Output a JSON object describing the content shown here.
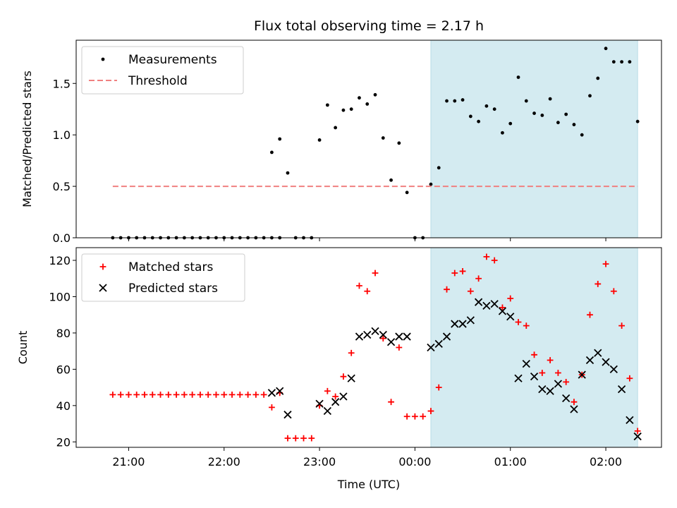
{
  "chart_data": [
    {
      "type": "scatter",
      "title": "Flux total observing time = 2.17 h",
      "xlabel": "",
      "ylabel": "Matched/Predicted stars",
      "ylim": [
        0,
        1.92
      ],
      "yticks": [
        "0.0",
        "0.5",
        "1.0",
        "1.5"
      ],
      "ytick_values": [
        0,
        0.5,
        1.0,
        1.5
      ],
      "grid": false,
      "legend": "top-left",
      "shaded_interval": [
        "00:10",
        "02:20"
      ],
      "shade_color": "#d4ebf1",
      "series": [
        {
          "name": "Measurements",
          "marker": "dot",
          "color": "#000000",
          "points": [
            [
              "20:50",
              0
            ],
            [
              "20:55",
              0
            ],
            [
              "21:00",
              0
            ],
            [
              "21:05",
              0
            ],
            [
              "21:10",
              0
            ],
            [
              "21:15",
              0
            ],
            [
              "21:20",
              0
            ],
            [
              "21:25",
              0
            ],
            [
              "21:30",
              0
            ],
            [
              "21:35",
              0
            ],
            [
              "21:40",
              0
            ],
            [
              "21:45",
              0
            ],
            [
              "21:50",
              0
            ],
            [
              "21:55",
              0
            ],
            [
              "22:00",
              0
            ],
            [
              "22:05",
              0
            ],
            [
              "22:10",
              0
            ],
            [
              "22:15",
              0
            ],
            [
              "22:20",
              0
            ],
            [
              "22:25",
              0
            ],
            [
              "22:30",
              0
            ],
            [
              "22:35",
              0
            ],
            [
              "22:30",
              0.83
            ],
            [
              "22:35",
              0.96
            ],
            [
              "22:40",
              0.63
            ],
            [
              "22:45",
              0
            ],
            [
              "22:50",
              0
            ],
            [
              "22:55",
              0
            ],
            [
              "23:00",
              0.95
            ],
            [
              "23:05",
              1.29
            ],
            [
              "23:10",
              1.07
            ],
            [
              "23:15",
              1.24
            ],
            [
              "23:20",
              1.25
            ],
            [
              "23:25",
              1.36
            ],
            [
              "23:30",
              1.3
            ],
            [
              "23:35",
              1.39
            ],
            [
              "23:40",
              0.97
            ],
            [
              "23:45",
              0.56
            ],
            [
              "23:50",
              0.92
            ],
            [
              "23:55",
              0.44
            ],
            [
              "00:00",
              0
            ],
            [
              "00:05",
              0
            ],
            [
              "00:10",
              0.52
            ],
            [
              "00:15",
              0.68
            ],
            [
              "00:20",
              1.33
            ],
            [
              "00:25",
              1.33
            ],
            [
              "00:30",
              1.34
            ],
            [
              "00:35",
              1.18
            ],
            [
              "00:40",
              1.13
            ],
            [
              "00:45",
              1.28
            ],
            [
              "00:50",
              1.25
            ],
            [
              "00:55",
              1.02
            ],
            [
              "01:00",
              1.11
            ],
            [
              "01:05",
              1.56
            ],
            [
              "01:10",
              1.33
            ],
            [
              "01:15",
              1.21
            ],
            [
              "01:20",
              1.19
            ],
            [
              "01:25",
              1.35
            ],
            [
              "01:30",
              1.12
            ],
            [
              "01:35",
              1.2
            ],
            [
              "01:40",
              1.1
            ],
            [
              "01:45",
              1.0
            ],
            [
              "01:50",
              1.38
            ],
            [
              "01:55",
              1.55
            ],
            [
              "02:00",
              1.84
            ],
            [
              "02:05",
              1.71
            ],
            [
              "02:10",
              1.71
            ],
            [
              "02:15",
              1.71
            ],
            [
              "02:20",
              1.13
            ]
          ]
        },
        {
          "name": "Threshold",
          "marker": "dashed-line",
          "color": "#f08080",
          "points": [
            [
              "20:50",
              0.5
            ],
            [
              "02:20",
              0.5
            ]
          ]
        }
      ]
    },
    {
      "type": "scatter",
      "title": "",
      "xlabel": "Time (UTC)",
      "ylabel": "Count",
      "ylim": [
        17,
        127
      ],
      "yticks": [
        "20",
        "40",
        "60",
        "80",
        "100",
        "120"
      ],
      "ytick_values": [
        20,
        40,
        60,
        80,
        100,
        120
      ],
      "xticks": [
        "21:00",
        "22:00",
        "23:00",
        "00:00",
        "01:00",
        "02:00"
      ],
      "xlim": [
        "20:27",
        "02:35"
      ],
      "grid": false,
      "legend": "top-left",
      "shaded_interval": [
        "00:10",
        "02:20"
      ],
      "shade_color": "#d4ebf1",
      "series": [
        {
          "name": "Matched stars",
          "marker": "plus",
          "color": "#ff0000",
          "points": [
            [
              "20:50",
              46
            ],
            [
              "20:55",
              46
            ],
            [
              "21:00",
              46
            ],
            [
              "21:05",
              46
            ],
            [
              "21:10",
              46
            ],
            [
              "21:15",
              46
            ],
            [
              "21:20",
              46
            ],
            [
              "21:25",
              46
            ],
            [
              "21:30",
              46
            ],
            [
              "21:35",
              46
            ],
            [
              "21:40",
              46
            ],
            [
              "21:45",
              46
            ],
            [
              "21:50",
              46
            ],
            [
              "21:55",
              46
            ],
            [
              "22:00",
              46
            ],
            [
              "22:05",
              46
            ],
            [
              "22:10",
              46
            ],
            [
              "22:15",
              46
            ],
            [
              "22:20",
              46
            ],
            [
              "22:25",
              46
            ],
            [
              "22:30",
              39
            ],
            [
              "22:35",
              47
            ],
            [
              "22:40",
              22
            ],
            [
              "22:45",
              22
            ],
            [
              "22:50",
              22
            ],
            [
              "22:55",
              22
            ],
            [
              "23:00",
              40
            ],
            [
              "23:05",
              48
            ],
            [
              "23:10",
              45
            ],
            [
              "23:15",
              56
            ],
            [
              "23:20",
              69
            ],
            [
              "23:25",
              106
            ],
            [
              "23:30",
              103
            ],
            [
              "23:35",
              113
            ],
            [
              "23:40",
              77
            ],
            [
              "23:45",
              42
            ],
            [
              "23:50",
              72
            ],
            [
              "23:55",
              34
            ],
            [
              "00:00",
              34
            ],
            [
              "00:05",
              34
            ],
            [
              "00:10",
              37
            ],
            [
              "00:15",
              50
            ],
            [
              "00:20",
              104
            ],
            [
              "00:25",
              113
            ],
            [
              "00:30",
              114
            ],
            [
              "00:35",
              103
            ],
            [
              "00:40",
              110
            ],
            [
              "00:45",
              122
            ],
            [
              "00:50",
              120
            ],
            [
              "00:55",
              94
            ],
            [
              "01:00",
              99
            ],
            [
              "01:05",
              86
            ],
            [
              "01:10",
              84
            ],
            [
              "01:15",
              68
            ],
            [
              "01:20",
              58
            ],
            [
              "01:25",
              65
            ],
            [
              "01:30",
              58
            ],
            [
              "01:35",
              53
            ],
            [
              "01:40",
              42
            ],
            [
              "01:45",
              57
            ],
            [
              "01:50",
              90
            ],
            [
              "01:55",
              107
            ],
            [
              "02:00",
              118
            ],
            [
              "02:05",
              103
            ],
            [
              "02:10",
              84
            ],
            [
              "02:15",
              55
            ],
            [
              "02:20",
              26
            ]
          ]
        },
        {
          "name": "Predicted stars",
          "marker": "x",
          "color": "#000000",
          "points": [
            [
              "22:30",
              47
            ],
            [
              "22:35",
              48
            ],
            [
              "22:40",
              35
            ],
            [
              "23:00",
              41
            ],
            [
              "23:05",
              37
            ],
            [
              "23:10",
              42
            ],
            [
              "23:15",
              45
            ],
            [
              "23:20",
              55
            ],
            [
              "23:25",
              78
            ],
            [
              "23:30",
              79
            ],
            [
              "23:35",
              81
            ],
            [
              "23:40",
              79
            ],
            [
              "23:45",
              75
            ],
            [
              "23:50",
              78
            ],
            [
              "23:55",
              78
            ],
            [
              "00:10",
              72
            ],
            [
              "00:15",
              74
            ],
            [
              "00:20",
              78
            ],
            [
              "00:25",
              85
            ],
            [
              "00:30",
              85
            ],
            [
              "00:35",
              87
            ],
            [
              "00:40",
              97
            ],
            [
              "00:45",
              95
            ],
            [
              "00:50",
              96
            ],
            [
              "00:55",
              92
            ],
            [
              "01:00",
              89
            ],
            [
              "01:05",
              55
            ],
            [
              "01:10",
              63
            ],
            [
              "01:15",
              56
            ],
            [
              "01:20",
              49
            ],
            [
              "01:25",
              48
            ],
            [
              "01:30",
              52
            ],
            [
              "01:35",
              44
            ],
            [
              "01:40",
              38
            ],
            [
              "01:45",
              57
            ],
            [
              "01:50",
              65
            ],
            [
              "01:55",
              69
            ],
            [
              "02:00",
              64
            ],
            [
              "02:05",
              60
            ],
            [
              "02:10",
              49
            ],
            [
              "02:15",
              32
            ],
            [
              "02:20",
              23
            ]
          ]
        }
      ]
    }
  ]
}
